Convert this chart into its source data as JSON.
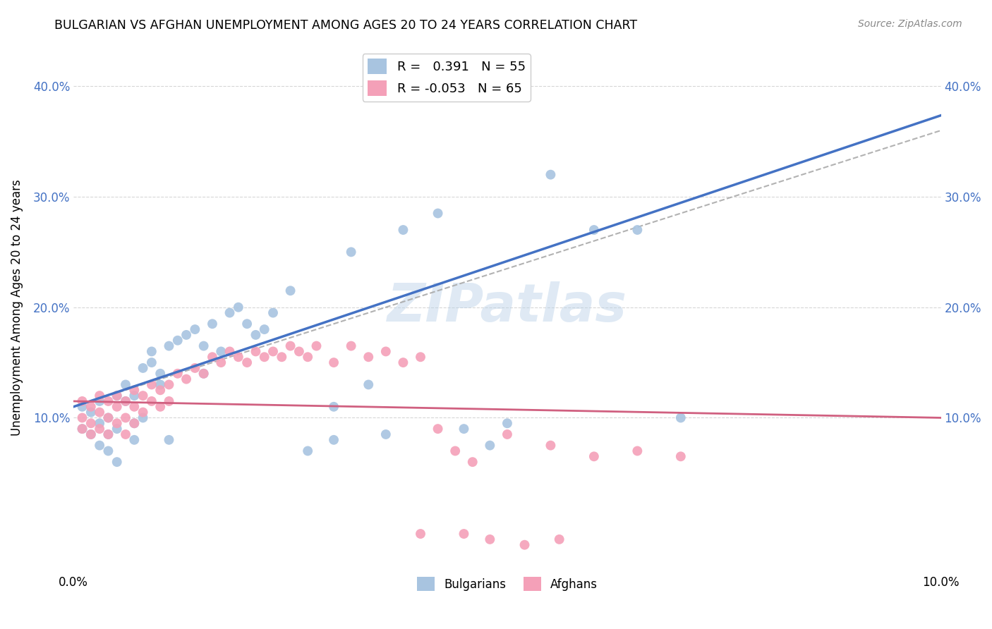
{
  "title": "BULGARIAN VS AFGHAN UNEMPLOYMENT AMONG AGES 20 TO 24 YEARS CORRELATION CHART",
  "source": "Source: ZipAtlas.com",
  "ylabel": "Unemployment Among Ages 20 to 24 years",
  "xlim": [
    0.0,
    0.1
  ],
  "ylim": [
    -0.04,
    0.44
  ],
  "yticks": [
    0.1,
    0.2,
    0.3,
    0.4
  ],
  "ytick_labels": [
    "10.0%",
    "20.0%",
    "30.0%",
    "40.0%"
  ],
  "xticks": [
    0.0,
    0.02,
    0.04,
    0.06,
    0.08,
    0.1
  ],
  "xtick_labels": [
    "0.0%",
    "",
    "",
    "",
    "",
    "10.0%"
  ],
  "bulgarian_R": 0.391,
  "bulgarian_N": 55,
  "afghan_R": -0.053,
  "afghan_N": 65,
  "bulgarian_color": "#a8c4e0",
  "afghan_color": "#f4a0b8",
  "bulgarian_line_color": "#4472c4",
  "afghan_line_color": "#d06080",
  "trend_line_color": "#aaaaaa",
  "background_color": "#ffffff",
  "grid_color": "#cccccc",
  "watermark": "ZIPatlas",
  "bul_line_x0": 0.0,
  "bul_line_y0": 0.11,
  "bul_line_x1": 0.055,
  "bul_line_y1": 0.255,
  "afg_line_x0": 0.0,
  "afg_line_y0": 0.115,
  "afg_line_x1": 0.1,
  "afg_line_y1": 0.1,
  "dash_line_x0": 0.0,
  "dash_line_y0": 0.11,
  "dash_line_x1": 0.1,
  "dash_line_y1": 0.36,
  "bulgarians_x": [
    0.001,
    0.001,
    0.002,
    0.002,
    0.003,
    0.003,
    0.003,
    0.004,
    0.004,
    0.004,
    0.005,
    0.005,
    0.005,
    0.006,
    0.006,
    0.007,
    0.007,
    0.007,
    0.008,
    0.008,
    0.009,
    0.009,
    0.01,
    0.01,
    0.011,
    0.011,
    0.012,
    0.013,
    0.014,
    0.015,
    0.015,
    0.016,
    0.017,
    0.018,
    0.019,
    0.02,
    0.021,
    0.022,
    0.023,
    0.025,
    0.027,
    0.03,
    0.032,
    0.034,
    0.036,
    0.038,
    0.042,
    0.045,
    0.048,
    0.05,
    0.055,
    0.06,
    0.065,
    0.07,
    0.03
  ],
  "bulgarians_y": [
    0.11,
    0.09,
    0.105,
    0.085,
    0.115,
    0.095,
    0.075,
    0.1,
    0.085,
    0.07,
    0.12,
    0.09,
    0.06,
    0.115,
    0.13,
    0.12,
    0.095,
    0.08,
    0.145,
    0.1,
    0.15,
    0.16,
    0.14,
    0.13,
    0.165,
    0.08,
    0.17,
    0.175,
    0.18,
    0.165,
    0.14,
    0.185,
    0.16,
    0.195,
    0.2,
    0.185,
    0.175,
    0.18,
    0.195,
    0.215,
    0.07,
    0.08,
    0.25,
    0.13,
    0.085,
    0.27,
    0.285,
    0.09,
    0.075,
    0.095,
    0.32,
    0.27,
    0.27,
    0.1,
    0.11
  ],
  "afghans_x": [
    0.001,
    0.001,
    0.001,
    0.002,
    0.002,
    0.002,
    0.003,
    0.003,
    0.003,
    0.004,
    0.004,
    0.004,
    0.005,
    0.005,
    0.005,
    0.006,
    0.006,
    0.006,
    0.007,
    0.007,
    0.007,
    0.008,
    0.008,
    0.009,
    0.009,
    0.01,
    0.01,
    0.011,
    0.011,
    0.012,
    0.013,
    0.014,
    0.015,
    0.016,
    0.017,
    0.018,
    0.019,
    0.02,
    0.021,
    0.022,
    0.023,
    0.024,
    0.025,
    0.026,
    0.027,
    0.028,
    0.03,
    0.032,
    0.034,
    0.036,
    0.038,
    0.04,
    0.042,
    0.044,
    0.046,
    0.05,
    0.055,
    0.06,
    0.065,
    0.07,
    0.04,
    0.045,
    0.048,
    0.052,
    0.056
  ],
  "afghans_y": [
    0.115,
    0.1,
    0.09,
    0.11,
    0.095,
    0.085,
    0.12,
    0.105,
    0.09,
    0.115,
    0.1,
    0.085,
    0.12,
    0.11,
    0.095,
    0.115,
    0.1,
    0.085,
    0.125,
    0.11,
    0.095,
    0.12,
    0.105,
    0.13,
    0.115,
    0.125,
    0.11,
    0.13,
    0.115,
    0.14,
    0.135,
    0.145,
    0.14,
    0.155,
    0.15,
    0.16,
    0.155,
    0.15,
    0.16,
    0.155,
    0.16,
    0.155,
    0.165,
    0.16,
    0.155,
    0.165,
    0.15,
    0.165,
    0.155,
    0.16,
    0.15,
    0.155,
    0.09,
    0.07,
    0.06,
    0.085,
    0.075,
    0.065,
    0.07,
    0.065,
    -0.005,
    -0.005,
    -0.01,
    -0.015,
    -0.01
  ]
}
